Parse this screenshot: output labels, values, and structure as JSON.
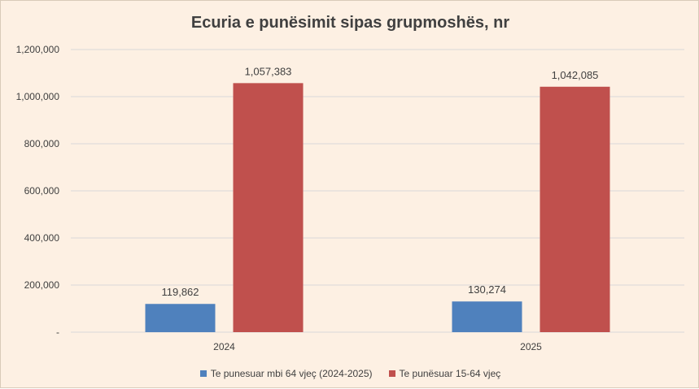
{
  "colors": {
    "background": "#fdf0e3",
    "gridline": "#d9d9d9",
    "text": "#404040",
    "series_1": "#4f81bd",
    "series_2": "#c0504d"
  },
  "chart_data": {
    "type": "bar",
    "title": "Ecuria e punësimit sipas grupmoshës, nr",
    "xlabel": "",
    "ylabel": "",
    "categories": [
      "2024",
      "2025"
    ],
    "ylim": [
      0,
      1200000
    ],
    "yticks": [
      {
        "value": 0,
        "label": "-"
      },
      {
        "value": 200000,
        "label": "200,000"
      },
      {
        "value": 400000,
        "label": "400,000"
      },
      {
        "value": 600000,
        "label": "600,000"
      },
      {
        "value": 800000,
        "label": "800,000"
      },
      {
        "value": 1000000,
        "label": "1,000,000"
      },
      {
        "value": 1200000,
        "label": "1,200,000"
      }
    ],
    "grid": true,
    "legend_position": "bottom",
    "series": [
      {
        "name": "Te punesuar mbi 64 vjeç (2024-2025)",
        "color": "#4f81bd",
        "values": [
          119862,
          130274
        ],
        "labels": [
          "119,862",
          "130,274"
        ]
      },
      {
        "name": "Te punësuar 15-64 vjeç",
        "color": "#c0504d",
        "values": [
          1057383,
          1042085
        ],
        "labels": [
          "1,057,383",
          "1,042,085"
        ]
      }
    ]
  }
}
